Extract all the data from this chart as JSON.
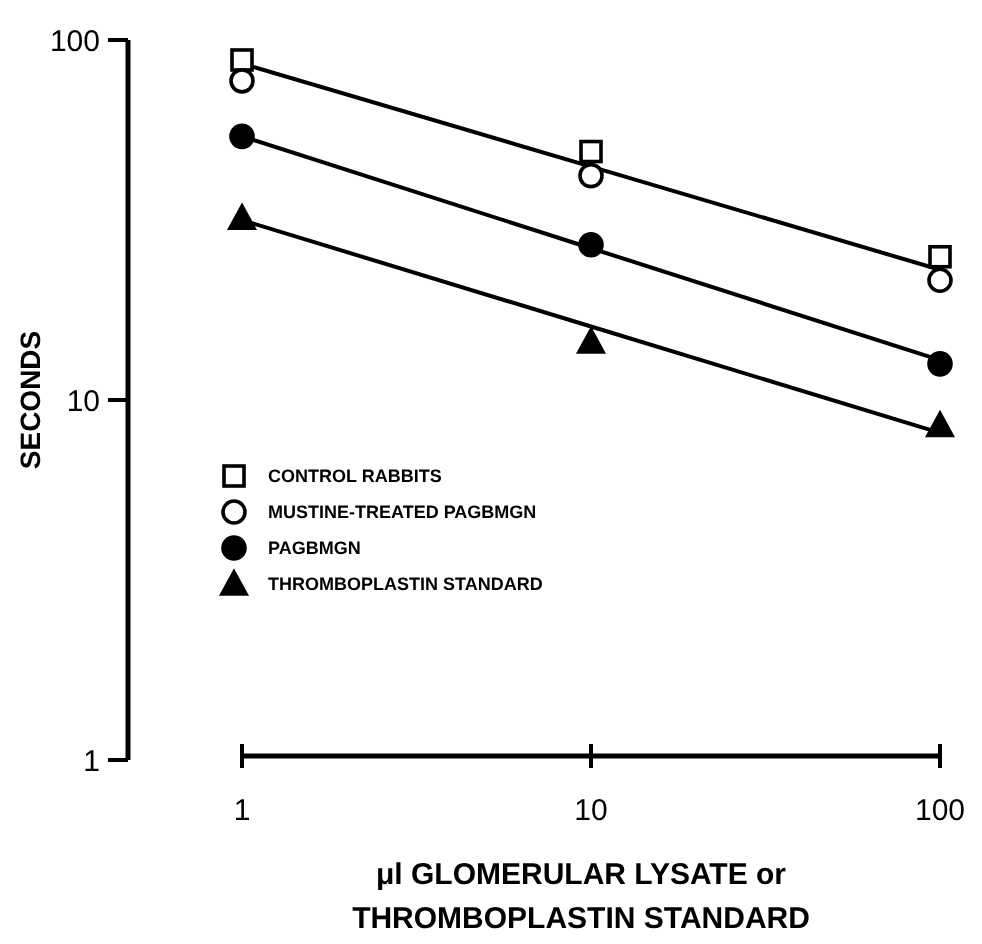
{
  "chart_data": {
    "type": "scatter",
    "xlabel": "μl GLOMERULAR LYSATE or THROMBOPLASTIN STANDARD",
    "ylabel": "SECONDS",
    "log": "xy",
    "xlim": [
      1,
      100
    ],
    "xticks": [
      1,
      10,
      100
    ],
    "ylim": [
      1,
      100
    ],
    "yticks": [
      1,
      10,
      100
    ],
    "legend": "left",
    "grid": false,
    "x": [
      1,
      10,
      100
    ],
    "series": [
      {
        "name": "CONTROL RABBITS",
        "color": "#ffffff",
        "marker": "square",
        "values": [
          88,
          49,
          25
        ]
      },
      {
        "name": "MUSTINE-TREATED PAGBMGN",
        "color": "#ffffff",
        "marker": "circle",
        "values": [
          77,
          42,
          21.5
        ]
      },
      {
        "name": "PAGBMGN",
        "color": "#000000",
        "marker": "circle",
        "values": [
          54,
          27,
          12.6
        ]
      },
      {
        "name": "THROMBOPLASTIN STANDARD",
        "color": "#000000",
        "marker": "triangle",
        "values": [
          32,
          14.5,
          8.5
        ]
      },
      {
        "type": "line",
        "color": "#000000",
        "values": [
          86,
          44.5,
          23
        ]
      },
      {
        "type": "line",
        "color": "#000000",
        "values": [
          54,
          26.4,
          12.9
        ]
      },
      {
        "type": "line",
        "color": "#000000",
        "values": [
          31.6,
          16,
          8.1
        ]
      }
    ]
  }
}
